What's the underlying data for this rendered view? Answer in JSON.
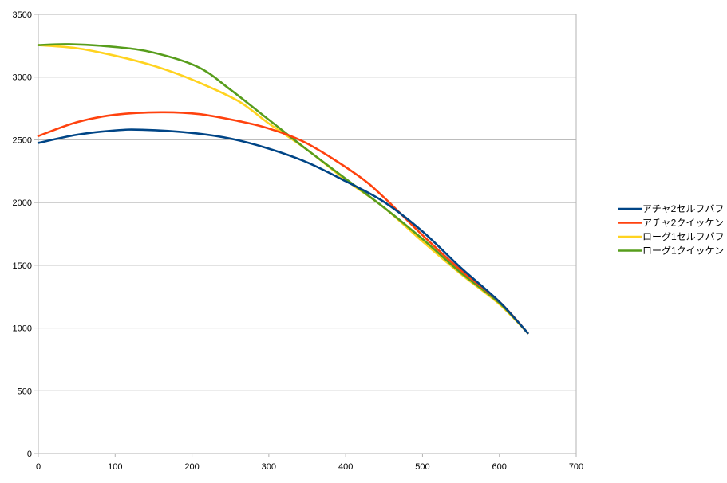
{
  "chart_data": {
    "type": "line",
    "title": "",
    "xlabel": "",
    "ylabel": "",
    "xlim": [
      0,
      700
    ],
    "ylim": [
      0,
      3500
    ],
    "x_ticks": [
      0,
      100,
      200,
      300,
      400,
      500,
      600,
      700
    ],
    "y_ticks": [
      0,
      500,
      1000,
      1500,
      2000,
      2500,
      3000,
      3500
    ],
    "grid": {
      "horizontal": true,
      "vertical": false
    },
    "legend_position": "right",
    "series": [
      {
        "name": "アチャ2セルフバフ",
        "color": "#004586",
        "points": [
          [
            0,
            2475
          ],
          [
            50,
            2540
          ],
          [
            100,
            2575
          ],
          [
            135,
            2580
          ],
          [
            200,
            2555
          ],
          [
            250,
            2510
          ],
          [
            300,
            2430
          ],
          [
            350,
            2320
          ],
          [
            400,
            2170
          ],
          [
            450,
            2005
          ],
          [
            500,
            1770
          ],
          [
            550,
            1480
          ],
          [
            600,
            1210
          ],
          [
            637,
            960
          ]
        ]
      },
      {
        "name": "アチャ2クイッケン",
        "color": "#ff420e",
        "points": [
          [
            0,
            2530
          ],
          [
            50,
            2640
          ],
          [
            100,
            2700
          ],
          [
            160,
            2720
          ],
          [
            210,
            2705
          ],
          [
            260,
            2650
          ],
          [
            300,
            2590
          ],
          [
            350,
            2470
          ],
          [
            415,
            2220
          ],
          [
            450,
            2040
          ],
          [
            500,
            1740
          ],
          [
            550,
            1460
          ],
          [
            600,
            1210
          ],
          [
            637,
            960
          ]
        ]
      },
      {
        "name": "ローグ1セルフバフ",
        "color": "#ffd320",
        "points": [
          [
            0,
            3255
          ],
          [
            50,
            3230
          ],
          [
            100,
            3170
          ],
          [
            150,
            3090
          ],
          [
            200,
            2980
          ],
          [
            260,
            2810
          ],
          [
            300,
            2630
          ],
          [
            350,
            2420
          ],
          [
            400,
            2180
          ],
          [
            450,
            1960
          ],
          [
            500,
            1690
          ],
          [
            550,
            1430
          ],
          [
            600,
            1190
          ],
          [
            637,
            960
          ]
        ]
      },
      {
        "name": "ローグ1クイッケン",
        "color": "#579d1c",
        "points": [
          [
            0,
            3255
          ],
          [
            40,
            3262
          ],
          [
            100,
            3240
          ],
          [
            150,
            3195
          ],
          [
            208,
            3080
          ],
          [
            250,
            2900
          ],
          [
            300,
            2660
          ],
          [
            350,
            2420
          ],
          [
            400,
            2190
          ],
          [
            450,
            1960
          ],
          [
            500,
            1710
          ],
          [
            550,
            1440
          ],
          [
            600,
            1200
          ],
          [
            637,
            960
          ]
        ]
      }
    ]
  }
}
